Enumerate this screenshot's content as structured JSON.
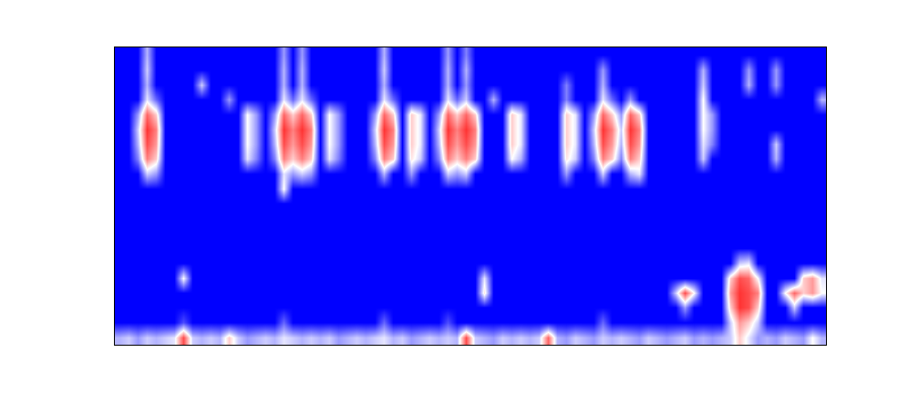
{
  "chart_data": {
    "type": "heatmap",
    "tick_labels": false,
    "colors": [
      "#0000ff",
      "#ffffff",
      "#ff0000"
    ],
    "zlim": [
      0,
      1
    ],
    "cells": [
      [
        0.35,
        0.4,
        0.3,
        0.4,
        0.35,
        0.4,
        0.45,
        0.85,
        0.4,
        0.35,
        0.4,
        0.35,
        0.6,
        0.4,
        0.3,
        0.35,
        0.4,
        0.35,
        0.45,
        0.4,
        0.35,
        0.4,
        0.35,
        0.4,
        0.3,
        0.35,
        0.4,
        0.35,
        0.4,
        0.45,
        0.35,
        0.4,
        0.3,
        0.35,
        0.4,
        0.35,
        0.4,
        0.35,
        0.85,
        0.4,
        0.35,
        0.3,
        0.4,
        0.35,
        0.4,
        0.35,
        0.4,
        0.8,
        0.35,
        0.3,
        0.4,
        0.35,
        0.3,
        0.4,
        0.35,
        0.4,
        0.35,
        0.3,
        0.4,
        0.35,
        0.3,
        0.35,
        0.4,
        0.3,
        0.35,
        0.3,
        0.35,
        0.4,
        0.6,
        0.45,
        0.3,
        0.35,
        0.3,
        0.4,
        0.35,
        0.3,
        0.5,
        0.35
      ],
      [
        0,
        0,
        0,
        0,
        0,
        0,
        0,
        0.15,
        0,
        0,
        0,
        0,
        0,
        0,
        0,
        0,
        0,
        0,
        0.2,
        0,
        0,
        0,
        0,
        0,
        0,
        0,
        0,
        0,
        0,
        0.2,
        0,
        0,
        0,
        0,
        0,
        0,
        0.15,
        0,
        0,
        0,
        0,
        0,
        0,
        0,
        0,
        0,
        0,
        0,
        0,
        0,
        0,
        0,
        0,
        0.2,
        0,
        0,
        0,
        0,
        0,
        0,
        0,
        0,
        0,
        0,
        0,
        0,
        0,
        0.4,
        0.7,
        0.6,
        0.4,
        0,
        0,
        0,
        0,
        0,
        0,
        0
      ],
      [
        0,
        0,
        0,
        0,
        0,
        0,
        0,
        0,
        0,
        0,
        0,
        0,
        0,
        0,
        0,
        0,
        0,
        0,
        0,
        0,
        0,
        0,
        0,
        0,
        0,
        0,
        0,
        0,
        0,
        0,
        0,
        0,
        0,
        0,
        0,
        0,
        0,
        0,
        0,
        0,
        0,
        0,
        0,
        0,
        0,
        0,
        0,
        0,
        0,
        0,
        0,
        0,
        0,
        0,
        0,
        0,
        0,
        0,
        0,
        0,
        0,
        0,
        0.3,
        0,
        0,
        0,
        0,
        0.6,
        0.9,
        0.85,
        0.6,
        0,
        0,
        0,
        0.4,
        0,
        0,
        0
      ],
      [
        0,
        0,
        0,
        0,
        0,
        0,
        0,
        0,
        0,
        0,
        0,
        0,
        0,
        0,
        0,
        0,
        0,
        0,
        0,
        0,
        0,
        0,
        0,
        0,
        0,
        0,
        0,
        0,
        0,
        0,
        0,
        0,
        0,
        0,
        0,
        0,
        0,
        0,
        0,
        0,
        0.55,
        0,
        0,
        0,
        0,
        0,
        0,
        0,
        0,
        0,
        0,
        0,
        0,
        0,
        0,
        0,
        0,
        0,
        0,
        0,
        0,
        0.4,
        0.85,
        0.5,
        0,
        0,
        0,
        0.7,
        0.9,
        0.85,
        0.75,
        0,
        0,
        0.5,
        0.8,
        0.6,
        0.7,
        0.5
      ],
      [
        0,
        0,
        0,
        0,
        0,
        0,
        0,
        0.5,
        0,
        0,
        0,
        0,
        0,
        0,
        0,
        0,
        0,
        0,
        0,
        0,
        0,
        0,
        0,
        0,
        0,
        0,
        0,
        0,
        0,
        0,
        0,
        0,
        0,
        0,
        0,
        0,
        0,
        0,
        0,
        0,
        0.45,
        0,
        0,
        0,
        0,
        0,
        0,
        0,
        0,
        0,
        0,
        0,
        0,
        0,
        0,
        0,
        0,
        0,
        0,
        0,
        0,
        0,
        0,
        0,
        0,
        0,
        0,
        0.6,
        0.85,
        0.8,
        0.5,
        0,
        0,
        0,
        0,
        0.6,
        0.7,
        0.45
      ],
      [
        0,
        0,
        0,
        0,
        0,
        0,
        0,
        0,
        0,
        0,
        0,
        0,
        0,
        0,
        0,
        0,
        0,
        0,
        0,
        0,
        0,
        0,
        0,
        0,
        0,
        0,
        0,
        0,
        0,
        0,
        0,
        0,
        0,
        0,
        0,
        0,
        0,
        0,
        0,
        0,
        0,
        0,
        0,
        0,
        0,
        0,
        0,
        0,
        0,
        0,
        0,
        0,
        0,
        0,
        0,
        0,
        0,
        0,
        0,
        0,
        0,
        0,
        0,
        0,
        0,
        0,
        0,
        0,
        0.4,
        0.45,
        0,
        0,
        0,
        0,
        0,
        0,
        0,
        0
      ],
      [
        0,
        0,
        0,
        0,
        0,
        0,
        0,
        0,
        0,
        0,
        0,
        0,
        0,
        0,
        0,
        0,
        0,
        0,
        0,
        0,
        0,
        0,
        0,
        0,
        0,
        0,
        0,
        0,
        0,
        0,
        0,
        0,
        0,
        0,
        0,
        0,
        0,
        0,
        0,
        0,
        0,
        0,
        0,
        0,
        0,
        0,
        0,
        0,
        0,
        0,
        0,
        0,
        0,
        0,
        0,
        0,
        0,
        0,
        0,
        0,
        0,
        0,
        0,
        0,
        0,
        0,
        0,
        0,
        0,
        0,
        0,
        0,
        0,
        0,
        0,
        0,
        0,
        0
      ],
      [
        0,
        0,
        0,
        0,
        0,
        0,
        0,
        0,
        0,
        0,
        0,
        0,
        0,
        0,
        0,
        0,
        0,
        0,
        0,
        0,
        0,
        0,
        0,
        0,
        0,
        0,
        0,
        0,
        0,
        0,
        0,
        0,
        0,
        0,
        0,
        0,
        0,
        0,
        0,
        0,
        0,
        0,
        0,
        0,
        0,
        0,
        0,
        0,
        0,
        0,
        0,
        0,
        0,
        0,
        0,
        0,
        0,
        0,
        0,
        0,
        0,
        0,
        0,
        0,
        0,
        0,
        0,
        0,
        0,
        0,
        0,
        0,
        0,
        0,
        0,
        0,
        0,
        0
      ],
      [
        0,
        0,
        0,
        0,
        0,
        0,
        0,
        0,
        0,
        0,
        0,
        0,
        0,
        0,
        0,
        0,
        0,
        0,
        0,
        0,
        0,
        0,
        0,
        0,
        0,
        0,
        0,
        0,
        0,
        0,
        0,
        0,
        0,
        0,
        0,
        0,
        0,
        0,
        0,
        0,
        0,
        0,
        0,
        0,
        0,
        0,
        0,
        0,
        0,
        0,
        0,
        0,
        0,
        0,
        0,
        0,
        0,
        0,
        0,
        0,
        0,
        0,
        0,
        0,
        0,
        0,
        0,
        0,
        0,
        0,
        0,
        0,
        0,
        0,
        0,
        0,
        0,
        0
      ],
      [
        0,
        0,
        0,
        0,
        0,
        0,
        0,
        0,
        0,
        0,
        0,
        0,
        0,
        0,
        0,
        0,
        0,
        0,
        0,
        0,
        0,
        0,
        0,
        0,
        0,
        0,
        0,
        0,
        0,
        0,
        0,
        0,
        0,
        0,
        0,
        0,
        0,
        0,
        0,
        0,
        0,
        0,
        0,
        0,
        0,
        0,
        0,
        0,
        0,
        0,
        0,
        0,
        0,
        0,
        0,
        0,
        0,
        0,
        0,
        0,
        0,
        0,
        0,
        0,
        0,
        0,
        0,
        0,
        0,
        0,
        0,
        0,
        0,
        0,
        0,
        0,
        0,
        0
      ],
      [
        0,
        0,
        0,
        0,
        0,
        0,
        0,
        0,
        0,
        0,
        0,
        0,
        0,
        0,
        0,
        0,
        0,
        0,
        0.5,
        0,
        0,
        0,
        0,
        0,
        0,
        0,
        0,
        0,
        0,
        0,
        0,
        0,
        0,
        0,
        0,
        0,
        0,
        0,
        0,
        0,
        0,
        0,
        0,
        0,
        0,
        0,
        0,
        0,
        0,
        0,
        0,
        0,
        0,
        0,
        0,
        0,
        0,
        0,
        0,
        0,
        0,
        0,
        0,
        0,
        0,
        0,
        0,
        0,
        0,
        0,
        0,
        0,
        0,
        0,
        0,
        0,
        0,
        0
      ],
      [
        0,
        0,
        0,
        0.4,
        0.3,
        0,
        0,
        0,
        0,
        0,
        0,
        0,
        0,
        0,
        0,
        0,
        0,
        0,
        0.45,
        0.3,
        0.4,
        0.3,
        0,
        0,
        0,
        0,
        0,
        0,
        0,
        0.35,
        0,
        0,
        0.3,
        0,
        0,
        0,
        0.4,
        0.3,
        0.4,
        0,
        0,
        0,
        0,
        0,
        0,
        0,
        0,
        0,
        0,
        0.3,
        0,
        0,
        0,
        0.4,
        0,
        0,
        0.35,
        0.45,
        0,
        0,
        0,
        0,
        0,
        0,
        0,
        0,
        0,
        0,
        0,
        0,
        0,
        0,
        0,
        0,
        0,
        0,
        0,
        0
      ],
      [
        0,
        0,
        0.25,
        0.75,
        0.6,
        0,
        0,
        0,
        0,
        0,
        0,
        0,
        0,
        0,
        0.45,
        0.25,
        0,
        0.25,
        0.75,
        0.6,
        0.75,
        0.6,
        0,
        0.45,
        0.25,
        0,
        0,
        0,
        0.25,
        0.75,
        0.6,
        0,
        0.55,
        0.4,
        0,
        0.25,
        0.75,
        0.6,
        0.75,
        0.6,
        0,
        0,
        0,
        0.5,
        0.35,
        0,
        0,
        0,
        0,
        0.55,
        0.4,
        0,
        0.25,
        0.75,
        0.6,
        0.25,
        0.75,
        0.6,
        0,
        0,
        0,
        0,
        0,
        0,
        0.4,
        0,
        0,
        0,
        0,
        0,
        0,
        0,
        0.35,
        0,
        0,
        0,
        0,
        0
      ],
      [
        0,
        0,
        0.35,
        0.85,
        0.7,
        0,
        0,
        0,
        0,
        0,
        0,
        0,
        0,
        0,
        0.5,
        0.3,
        0,
        0.35,
        0.85,
        0.7,
        0.85,
        0.7,
        0,
        0.5,
        0.3,
        0,
        0,
        0,
        0.35,
        0.85,
        0.7,
        0,
        0.6,
        0.45,
        0,
        0.35,
        0.85,
        0.7,
        0.85,
        0.7,
        0,
        0,
        0,
        0.6,
        0.45,
        0,
        0,
        0,
        0,
        0.6,
        0.45,
        0,
        0.35,
        0.85,
        0.7,
        0.35,
        0.85,
        0.7,
        0,
        0,
        0,
        0,
        0,
        0,
        0.45,
        0.25,
        0,
        0,
        0,
        0,
        0,
        0,
        0.4,
        0,
        0,
        0,
        0,
        0
      ],
      [
        0,
        0,
        0.4,
        0.9,
        0.75,
        0,
        0,
        0,
        0,
        0,
        0,
        0,
        0,
        0,
        0.5,
        0.3,
        0,
        0.4,
        0.9,
        0.75,
        0.9,
        0.75,
        0,
        0.5,
        0.3,
        0,
        0,
        0,
        0.4,
        0.9,
        0.75,
        0,
        0.6,
        0.45,
        0,
        0.4,
        0.9,
        0.75,
        0.9,
        0.75,
        0,
        0,
        0,
        0.6,
        0.45,
        0,
        0,
        0,
        0,
        0.6,
        0.45,
        0,
        0.4,
        0.9,
        0.75,
        0.4,
        0.9,
        0.75,
        0,
        0,
        0,
        0,
        0,
        0,
        0.5,
        0.3,
        0,
        0,
        0,
        0,
        0,
        0,
        0,
        0,
        0,
        0,
        0,
        0
      ],
      [
        0,
        0,
        0.3,
        0.8,
        0.6,
        0,
        0,
        0,
        0,
        0,
        0,
        0,
        0,
        0,
        0.5,
        0.3,
        0,
        0.3,
        0.8,
        0.6,
        0.8,
        0.6,
        0,
        0.5,
        0.3,
        0,
        0,
        0,
        0.3,
        0.8,
        0.6,
        0,
        0.6,
        0.45,
        0,
        0.3,
        0.8,
        0.6,
        0.8,
        0.6,
        0,
        0,
        0,
        0.6,
        0.45,
        0,
        0,
        0,
        0,
        0.6,
        0.45,
        0,
        0.3,
        0.8,
        0.6,
        0.3,
        0.8,
        0.6,
        0,
        0,
        0,
        0,
        0,
        0,
        0.5,
        0.3,
        0,
        0,
        0,
        0,
        0,
        0,
        0,
        0,
        0,
        0,
        0,
        0
      ],
      [
        0,
        0,
        0,
        0.45,
        0.2,
        0,
        0,
        0,
        0,
        0,
        0,
        0,
        0.3,
        0,
        0,
        0,
        0,
        0,
        0.45,
        0.2,
        0.45,
        0.2,
        0,
        0,
        0,
        0,
        0,
        0,
        0,
        0.45,
        0.2,
        0,
        0,
        0,
        0,
        0,
        0.45,
        0.2,
        0.4,
        0,
        0,
        0.35,
        0,
        0,
        0,
        0,
        0,
        0,
        0,
        0.25,
        0,
        0,
        0,
        0.45,
        0.2,
        0,
        0.3,
        0,
        0,
        0,
        0,
        0,
        0,
        0,
        0.5,
        0,
        0,
        0,
        0,
        0,
        0,
        0,
        0,
        0,
        0,
        0,
        0,
        0.35
      ],
      [
        0,
        0,
        0,
        0.35,
        0,
        0,
        0,
        0,
        0,
        0.4,
        0,
        0,
        0,
        0,
        0,
        0,
        0,
        0,
        0.35,
        0,
        0.35,
        0,
        0,
        0,
        0,
        0,
        0,
        0,
        0,
        0.35,
        0,
        0,
        0,
        0,
        0,
        0,
        0.35,
        0,
        0.3,
        0,
        0,
        0,
        0,
        0,
        0,
        0,
        0,
        0,
        0,
        0.25,
        0,
        0,
        0,
        0.35,
        0,
        0,
        0,
        0,
        0,
        0,
        0,
        0,
        0,
        0,
        0.4,
        0,
        0,
        0,
        0,
        0.35,
        0,
        0,
        0.3,
        0,
        0,
        0,
        0,
        0
      ],
      [
        0,
        0,
        0,
        0.4,
        0,
        0,
        0,
        0,
        0,
        0,
        0,
        0,
        0,
        0,
        0,
        0,
        0,
        0,
        0.35,
        0,
        0.35,
        0,
        0,
        0,
        0,
        0,
        0,
        0,
        0,
        0.4,
        0,
        0,
        0,
        0,
        0,
        0,
        0.35,
        0,
        0.35,
        0,
        0,
        0,
        0,
        0,
        0,
        0,
        0,
        0,
        0,
        0,
        0,
        0,
        0,
        0.3,
        0,
        0,
        0,
        0,
        0,
        0,
        0,
        0,
        0,
        0,
        0.35,
        0,
        0,
        0,
        0,
        0.3,
        0,
        0,
        0.3,
        0,
        0,
        0,
        0,
        0
      ],
      [
        0,
        0,
        0,
        0.35,
        0,
        0,
        0,
        0,
        0,
        0,
        0,
        0,
        0,
        0,
        0,
        0,
        0,
        0,
        0.3,
        0,
        0.3,
        0,
        0,
        0,
        0,
        0,
        0,
        0,
        0,
        0.35,
        0,
        0,
        0,
        0,
        0,
        0,
        0.3,
        0,
        0.25,
        0,
        0,
        0,
        0,
        0,
        0,
        0,
        0,
        0,
        0,
        0,
        0,
        0,
        0,
        0,
        0,
        0,
        0,
        0,
        0,
        0,
        0,
        0,
        0,
        0,
        0,
        0,
        0,
        0,
        0,
        0,
        0,
        0,
        0,
        0,
        0,
        0,
        0,
        0
      ]
    ]
  }
}
